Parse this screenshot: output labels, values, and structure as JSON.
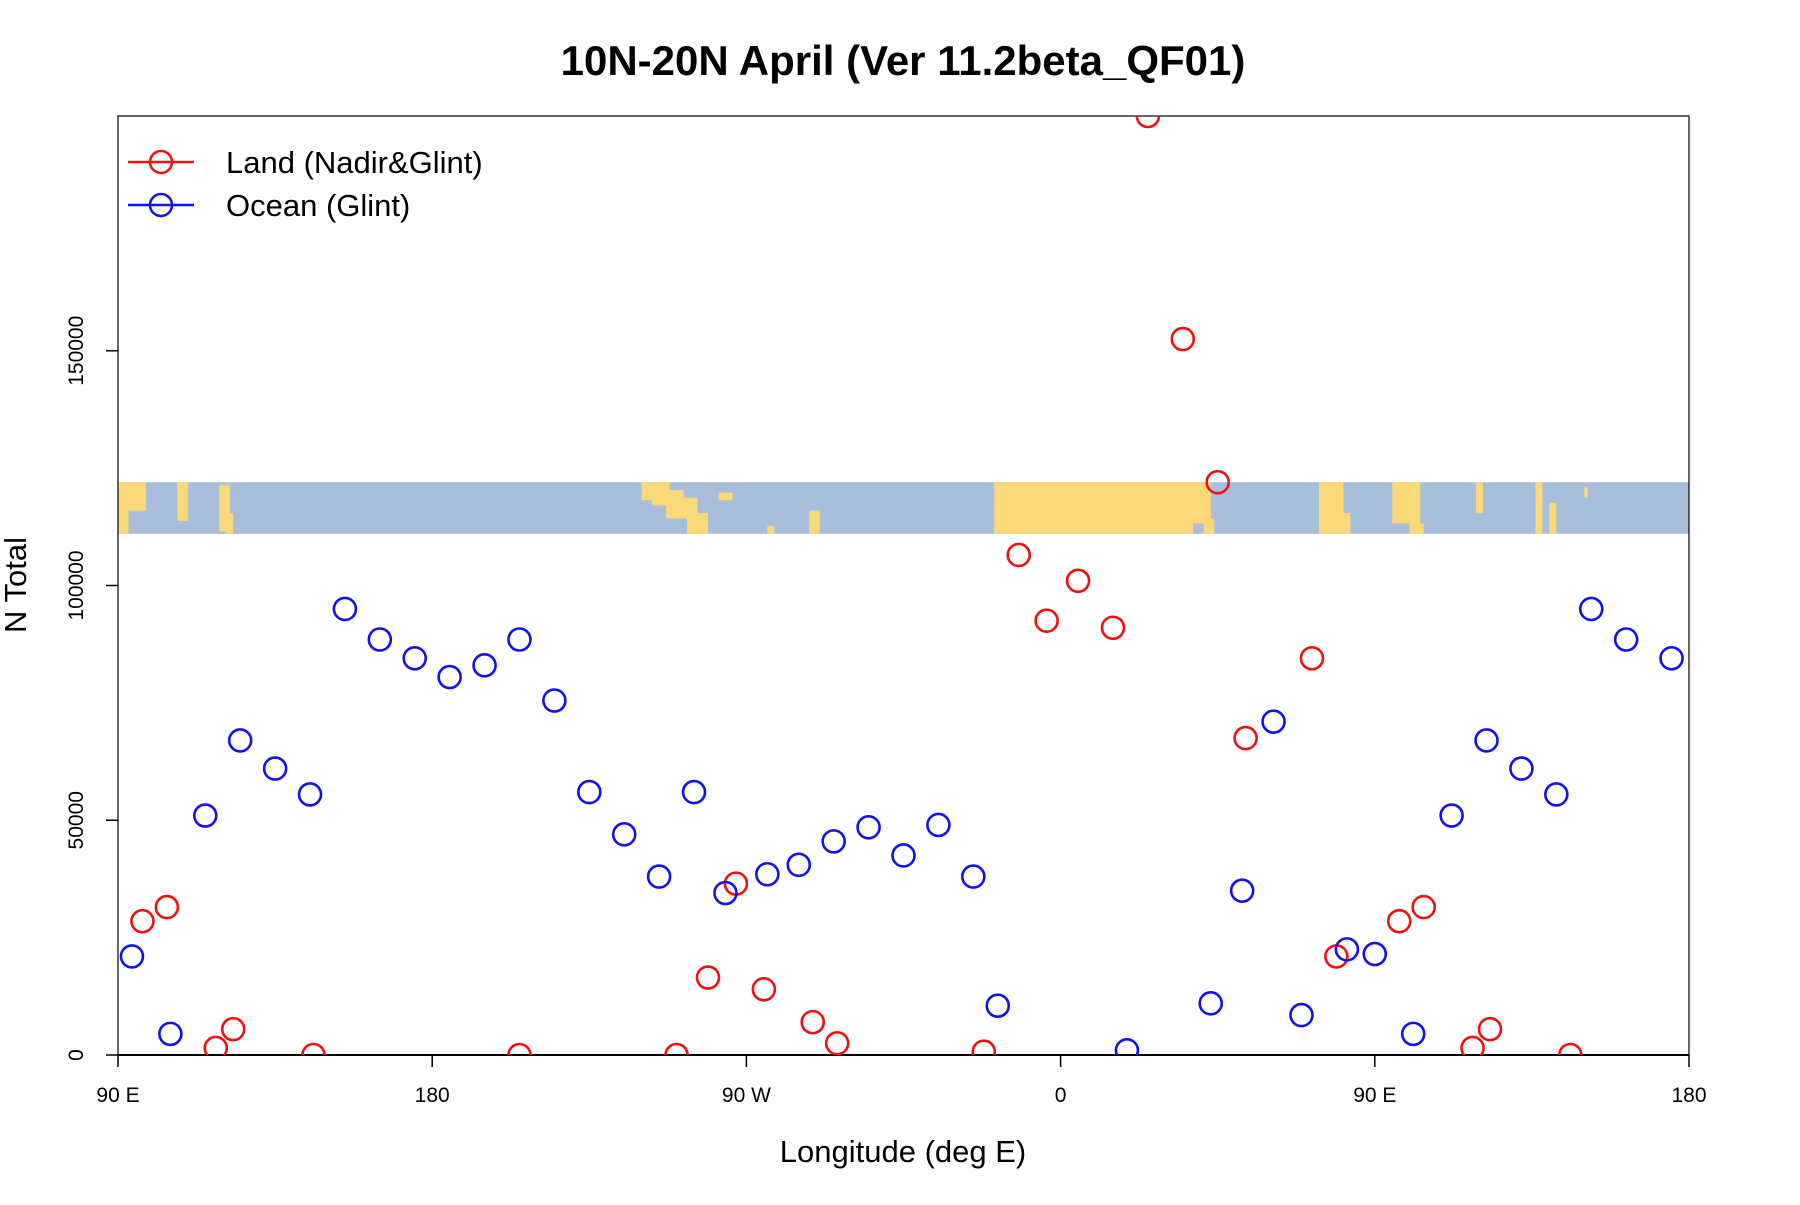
{
  "chart_data": {
    "type": "scatter",
    "title": "10N-20N April (Ver 11.2beta_QF01)",
    "xlabel": "Longitude (deg E)",
    "ylabel": "N Total",
    "xlim": [
      90,
      540
    ],
    "ylim": [
      0,
      200000
    ],
    "x_ticks": [
      {
        "value": 90,
        "label": "90 E"
      },
      {
        "value": 180,
        "label": "180"
      },
      {
        "value": 270,
        "label": "90 W"
      },
      {
        "value": 360,
        "label": "0"
      },
      {
        "value": 450,
        "label": "90 E"
      },
      {
        "value": 540,
        "label": "180"
      }
    ],
    "y_ticks": [
      {
        "value": 0,
        "label": "0"
      },
      {
        "value": 50000,
        "label": "50000"
      },
      {
        "value": 100000,
        "label": "100000"
      },
      {
        "value": 150000,
        "label": "150000"
      }
    ],
    "legend_position": "top-left",
    "grid": false,
    "map_strip": {
      "lat_range": "10N-20N",
      "y_range": [
        111000,
        122000
      ],
      "ocean_color": "#a8bedb",
      "land_color": "#fcd978"
    },
    "series": [
      {
        "name": "Land (Nadir&Glint)",
        "color": "#ee1111",
        "points": [
          [
            97,
            28500
          ],
          [
            104,
            31500
          ],
          [
            118,
            1500
          ],
          [
            123,
            5500
          ],
          [
            146,
            0
          ],
          [
            205,
            0
          ],
          [
            250,
            0
          ],
          [
            259,
            16500
          ],
          [
            267,
            36500
          ],
          [
            275,
            14000
          ],
          [
            289,
            7000
          ],
          [
            296,
            2500
          ],
          [
            338,
            700
          ],
          [
            348,
            106500
          ],
          [
            356,
            92500
          ],
          [
            365,
            101000
          ],
          [
            375,
            91000
          ],
          [
            385,
            200000
          ],
          [
            395,
            152500
          ],
          [
            405,
            122000
          ],
          [
            413,
            67500
          ],
          [
            432,
            84500
          ],
          [
            439,
            21000
          ],
          [
            457,
            28500
          ],
          [
            464,
            31500
          ],
          [
            478,
            1500
          ],
          [
            483,
            5500
          ],
          [
            506,
            0
          ]
        ]
      },
      {
        "name": "Ocean (Glint)",
        "color": "#1111ee",
        "points": [
          [
            94,
            21000
          ],
          [
            105,
            4500
          ],
          [
            115,
            51000
          ],
          [
            125,
            67000
          ],
          [
            135,
            61000
          ],
          [
            145,
            55500
          ],
          [
            155,
            95000
          ],
          [
            165,
            88500
          ],
          [
            175,
            84500
          ],
          [
            185,
            80500
          ],
          [
            195,
            83000
          ],
          [
            205,
            88500
          ],
          [
            215,
            75500
          ],
          [
            225,
            56000
          ],
          [
            235,
            47000
          ],
          [
            245,
            38000
          ],
          [
            255,
            56000
          ],
          [
            264,
            34500
          ],
          [
            276,
            38500
          ],
          [
            285,
            40500
          ],
          [
            295,
            45500
          ],
          [
            305,
            48500
          ],
          [
            315,
            42500
          ],
          [
            325,
            49000
          ],
          [
            335,
            38000
          ],
          [
            342,
            10500
          ],
          [
            379,
            1000
          ],
          [
            403,
            11000
          ],
          [
            412,
            35000
          ],
          [
            421,
            71000
          ],
          [
            429,
            8500
          ],
          [
            442,
            22500
          ],
          [
            450,
            21500
          ],
          [
            461,
            4500
          ],
          [
            472,
            51000
          ],
          [
            482,
            67000
          ],
          [
            492,
            61000
          ],
          [
            502,
            55500
          ],
          [
            512,
            95000
          ],
          [
            522,
            88500
          ],
          [
            535,
            84500
          ]
        ]
      }
    ]
  }
}
